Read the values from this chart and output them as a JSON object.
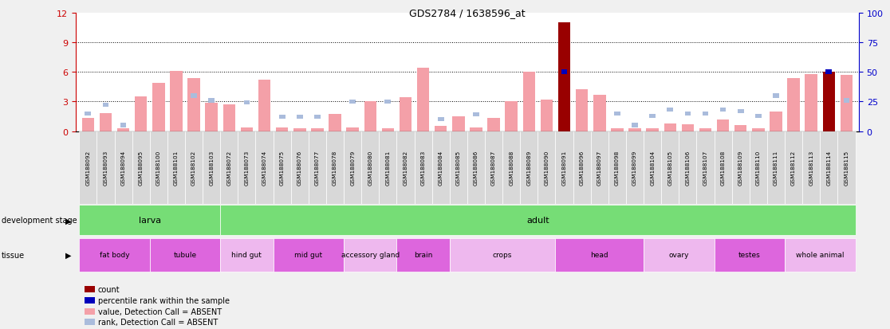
{
  "title": "GDS2784 / 1638596_at",
  "samples": [
    "GSM188092",
    "GSM188093",
    "GSM188094",
    "GSM188095",
    "GSM188100",
    "GSM188101",
    "GSM188102",
    "GSM188103",
    "GSM188072",
    "GSM188073",
    "GSM188074",
    "GSM188075",
    "GSM188076",
    "GSM188077",
    "GSM188078",
    "GSM188079",
    "GSM188080",
    "GSM188081",
    "GSM188082",
    "GSM188083",
    "GSM188084",
    "GSM188085",
    "GSM188086",
    "GSM188087",
    "GSM188088",
    "GSM188089",
    "GSM188090",
    "GSM188091",
    "GSM188096",
    "GSM188097",
    "GSM188098",
    "GSM188099",
    "GSM188104",
    "GSM188105",
    "GSM188106",
    "GSM188107",
    "GSM188108",
    "GSM188109",
    "GSM188110",
    "GSM188111",
    "GSM188112",
    "GSM188113",
    "GSM188114",
    "GSM188115"
  ],
  "count_values": [
    1.3,
    1.8,
    0.3,
    3.5,
    4.9,
    6.1,
    5.4,
    2.9,
    2.7,
    0.4,
    5.2,
    0.4,
    0.3,
    0.3,
    1.7,
    0.4,
    3.0,
    0.3,
    3.4,
    6.4,
    0.5,
    1.5,
    0.4,
    1.3,
    3.0,
    6.0,
    3.2,
    11.0,
    4.2,
    3.7,
    0.3,
    0.3,
    0.3,
    0.8,
    0.7,
    0.3,
    1.2,
    0.6,
    0.3,
    2.0,
    5.4,
    5.8,
    6.0,
    5.7
  ],
  "rank_values_pct": [
    15,
    22,
    5,
    0,
    0,
    0,
    30,
    26,
    0,
    24,
    0,
    12,
    12,
    12,
    0,
    25,
    0,
    25,
    0,
    0,
    10,
    0,
    14,
    0,
    0,
    0,
    0,
    50,
    0,
    0,
    15,
    5,
    13,
    18,
    15,
    15,
    18,
    17,
    13,
    30,
    0,
    0,
    50,
    26
  ],
  "is_present": [
    false,
    false,
    false,
    false,
    false,
    false,
    false,
    false,
    false,
    false,
    false,
    false,
    false,
    false,
    false,
    false,
    false,
    false,
    false,
    false,
    false,
    false,
    false,
    false,
    false,
    false,
    false,
    true,
    false,
    false,
    false,
    false,
    false,
    false,
    false,
    false,
    false,
    false,
    false,
    false,
    false,
    false,
    true,
    false
  ],
  "ylim_left": [
    0,
    12
  ],
  "yticks_left": [
    0,
    3,
    6,
    9,
    12
  ],
  "ylim_right": [
    0,
    100
  ],
  "yticks_right": [
    0,
    25,
    50,
    75,
    100
  ],
  "development_stages": [
    {
      "label": "larva",
      "start": 0,
      "end": 8
    },
    {
      "label": "adult",
      "start": 8,
      "end": 44
    }
  ],
  "tissue_groups": [
    {
      "label": "fat body",
      "start": 0,
      "end": 4
    },
    {
      "label": "tubule",
      "start": 4,
      "end": 8
    },
    {
      "label": "hind gut",
      "start": 8,
      "end": 11
    },
    {
      "label": "mid gut",
      "start": 11,
      "end": 15
    },
    {
      "label": "accessory gland",
      "start": 15,
      "end": 18
    },
    {
      "label": "brain",
      "start": 18,
      "end": 21
    },
    {
      "label": "crops",
      "start": 21,
      "end": 27
    },
    {
      "label": "head",
      "start": 27,
      "end": 32
    },
    {
      "label": "ovary",
      "start": 32,
      "end": 36
    },
    {
      "label": "testes",
      "start": 36,
      "end": 40
    },
    {
      "label": "whole animal",
      "start": 40,
      "end": 44
    }
  ],
  "tissue_colors": [
    "#DD66DD",
    "#DD66DD",
    "#EEB8EE",
    "#DD66DD",
    "#EEB8EE",
    "#DD66DD",
    "#EEB8EE",
    "#DD66DD",
    "#EEB8EE",
    "#DD66DD",
    "#EEB8EE"
  ],
  "absent_bar_color": "#F4A0A8",
  "absent_rank_color": "#AABCDC",
  "present_bar_color": "#990000",
  "present_rank_color": "#0000BB",
  "stage_color": "#76DD76",
  "left_axis_color": "#CC0000",
  "right_axis_color": "#0000CC",
  "tick_label_bg": "#D8D8D8",
  "background_color": "#f0f0f0"
}
